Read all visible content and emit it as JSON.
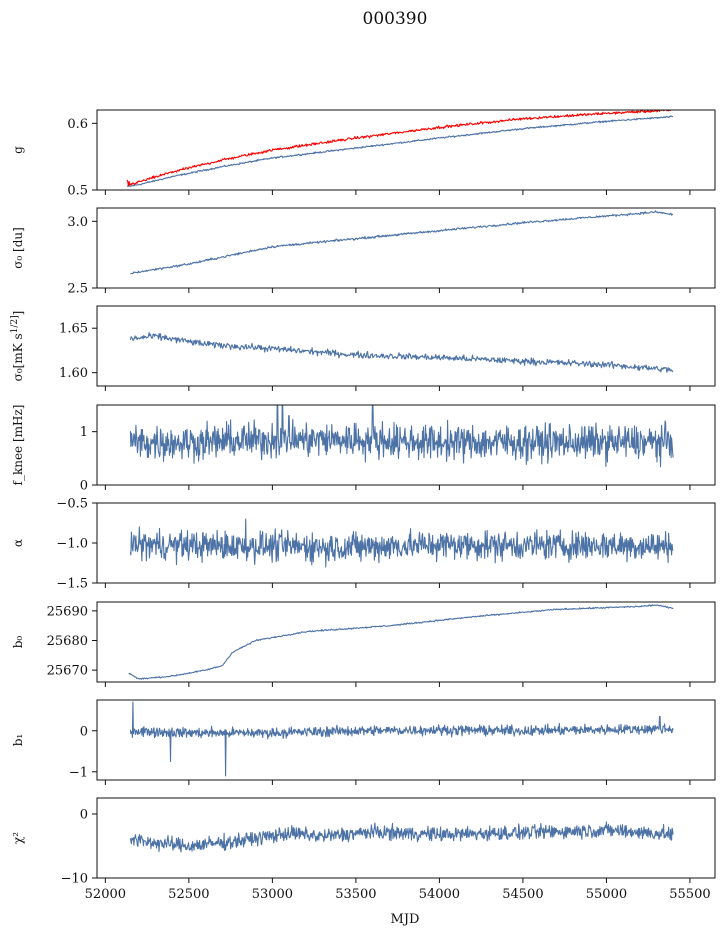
{
  "chart_data": {
    "title": "000390",
    "xlabel": "MJD",
    "type": "line",
    "xlim": [
      51950,
      55650
    ],
    "xticks": [
      52000,
      52500,
      53000,
      53500,
      54000,
      54500,
      55000,
      55500
    ],
    "x_range_data": [
      52120,
      55400
    ],
    "colors": {
      "series": "#4c72a6",
      "highlight": "#ff0000",
      "axis": "#111111"
    },
    "panels": [
      {
        "key": "g",
        "ylabel": "g",
        "ylim": [
          0.5,
          0.62
        ],
        "yticks": [
          0.5,
          0.6
        ],
        "ytick_labels": [
          "0.5",
          "0.6"
        ],
        "series": [
          {
            "color": "#4c72a6",
            "x": [
              52130,
              52200,
              52400,
              52700,
              53000,
              53500,
              54000,
              54500,
              55000,
              55400
            ],
            "y": [
              0.505,
              0.508,
              0.52,
              0.535,
              0.548,
              0.563,
              0.578,
              0.592,
              0.603,
              0.61
            ]
          },
          {
            "color": "#ff0000",
            "x": [
              52130,
              52200,
              52400,
              52700,
              53000,
              53500,
              54000,
              54500,
              55000,
              55400
            ],
            "y": [
              0.507,
              0.512,
              0.527,
              0.545,
              0.56,
              0.578,
              0.594,
              0.607,
              0.615,
              0.62
            ]
          }
        ]
      },
      {
        "key": "sigma0_du",
        "ylabel": "σ₀ [du]",
        "ylim": [
          2.5,
          3.1
        ],
        "yticks": [
          2.5,
          3.0
        ],
        "ytick_labels": [
          "2.5",
          "3.0"
        ],
        "series": [
          {
            "color": "#4c72a6",
            "x": [
              52150,
              52500,
              53000,
              53500,
              54000,
              54500,
              55000,
              55300,
              55400
            ],
            "y": [
              2.61,
              2.68,
              2.81,
              2.87,
              2.93,
              2.99,
              3.04,
              3.07,
              3.05
            ]
          }
        ]
      },
      {
        "key": "sigma0_mK",
        "ylabel": "σ₀[mK s^1/2]",
        "ylim": [
          1.585,
          1.675
        ],
        "yticks": [
          1.6,
          1.65
        ],
        "ytick_labels": [
          "1.60",
          "1.65"
        ],
        "series": [
          {
            "color": "#4c72a6",
            "x": [
              52150,
              52300,
              52600,
              53000,
              53500,
              54000,
              54500,
              55000,
              55400
            ],
            "y": [
              1.638,
              1.641,
              1.632,
              1.627,
              1.62,
              1.617,
              1.613,
              1.609,
              1.603
            ]
          }
        ]
      },
      {
        "key": "fknee",
        "ylabel": "f_knee [mHz]",
        "ylim": [
          0,
          1.5
        ],
        "yticks": [
          0,
          1
        ],
        "ytick_labels": [
          "0",
          "1"
        ],
        "series": [
          {
            "color": "#4c72a6",
            "x": [
              52150,
              52500,
              53000,
              53500,
              54000,
              54500,
              55000,
              55400
            ],
            "y": [
              0.8,
              0.8,
              0.85,
              0.85,
              0.8,
              0.8,
              0.8,
              0.8
            ]
          }
        ]
      },
      {
        "key": "alpha",
        "ylabel": "α",
        "ylim": [
          -1.5,
          -0.5
        ],
        "yticks": [
          -1.5,
          -1.0,
          -0.5
        ],
        "ytick_labels": [
          "−1.5",
          "−1.0",
          "−0.5"
        ],
        "series": [
          {
            "color": "#4c72a6",
            "x": [
              52150,
              52500,
              53000,
              53500,
              54000,
              54500,
              55000,
              55400
            ],
            "y": [
              -1.02,
              -1.03,
              -1.04,
              -1.05,
              -1.02,
              -1.03,
              -1.03,
              -1.04
            ]
          }
        ]
      },
      {
        "key": "b0",
        "ylabel": "b₀",
        "ylim": [
          25666,
          25693
        ],
        "yticks": [
          25670,
          25680,
          25690
        ],
        "ytick_labels": [
          "25670",
          "25680",
          "25690"
        ],
        "series": [
          {
            "color": "#4c72a6",
            "x": [
              52140,
              52200,
              52400,
              52600,
              52700,
              52760,
              52900,
              53200,
              53700,
              54200,
              54700,
              55200,
              55300,
              55400
            ],
            "y": [
              25669,
              25667,
              25668,
              25670,
              25671.5,
              25676,
              25680,
              25683,
              25685,
              25688,
              25690.5,
              25691.5,
              25692,
              25690.8
            ]
          }
        ]
      },
      {
        "key": "b1",
        "ylabel": "b₁",
        "ylim": [
          -1.2,
          0.75
        ],
        "yticks": [
          -1,
          0
        ],
        "ytick_labels": [
          "−1",
          "0"
        ],
        "series": [
          {
            "color": "#4c72a6",
            "x": [
              52150,
              52500,
              53000,
              53500,
              54000,
              54500,
              55000,
              55400
            ],
            "y": [
              0.0,
              -0.05,
              -0.05,
              0.0,
              0.02,
              0.0,
              0.03,
              0.05
            ]
          }
        ]
      },
      {
        "key": "chi2",
        "ylabel": "χ²",
        "ylim": [
          -10,
          2.5
        ],
        "yticks": [
          -10,
          0
        ],
        "ytick_labels": [
          "−10",
          "0"
        ],
        "series": [
          {
            "color": "#4c72a6",
            "x": [
              52150,
              52300,
              52500,
              52800,
              53100,
              53300,
              53600,
              54000,
              54500,
              55000,
              55400
            ],
            "y": [
              -4,
              -4.5,
              -5,
              -4.2,
              -3,
              -3.5,
              -2.8,
              -3.2,
              -2.9,
              -2.5,
              -3.2
            ]
          }
        ]
      }
    ]
  }
}
